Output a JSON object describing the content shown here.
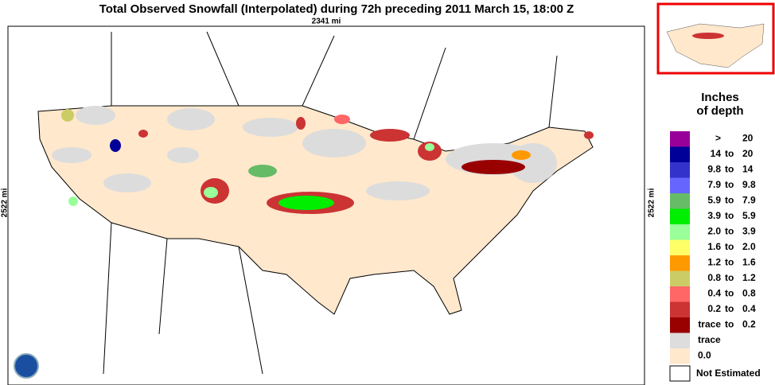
{
  "header": {
    "title": "Total Observed Snowfall (Interpolated) during 72h preceding 2011 March 15, 18:00 Z"
  },
  "map": {
    "scale_x": "2341 mi",
    "scale_y": "2522 mi"
  },
  "legend": {
    "title_lines": [
      "Inches",
      "of depth"
    ],
    "items": [
      {
        "color": "#990099",
        "low": ">",
        "high": "20"
      },
      {
        "color": "#000099",
        "low": "14",
        "sep": "to",
        "high": "20"
      },
      {
        "color": "#3333cc",
        "low": "9.8",
        "sep": "to",
        "high": "14"
      },
      {
        "color": "#6666ff",
        "low": "7.9",
        "sep": "to",
        "high": "9.8"
      },
      {
        "color": "#66bb66",
        "low": "5.9",
        "sep": "to",
        "high": "7.9"
      },
      {
        "color": "#00ee00",
        "low": "3.9",
        "sep": "to",
        "high": "5.9"
      },
      {
        "color": "#99ff99",
        "low": "2.0",
        "sep": "to",
        "high": "3.9"
      },
      {
        "color": "#ffff66",
        "low": "1.6",
        "sep": "to",
        "high": "2.0"
      },
      {
        "color": "#ff9900",
        "low": "1.2",
        "sep": "to",
        "high": "1.6"
      },
      {
        "color": "#cccc66",
        "low": "0.8",
        "sep": "to",
        "high": "1.2"
      },
      {
        "color": "#ff6666",
        "low": "0.4",
        "sep": "to",
        "high": "0.8"
      },
      {
        "color": "#cc3333",
        "low": "0.2",
        "sep": "to",
        "high": "0.4"
      },
      {
        "color": "#990000",
        "low": "trace",
        "sep": "to",
        "high": "0.2"
      },
      {
        "color": "#dddddd",
        "low": "trace"
      },
      {
        "color": "#ffe8cc",
        "low": "0.0"
      }
    ],
    "not_estimated": "Not Estimated"
  }
}
